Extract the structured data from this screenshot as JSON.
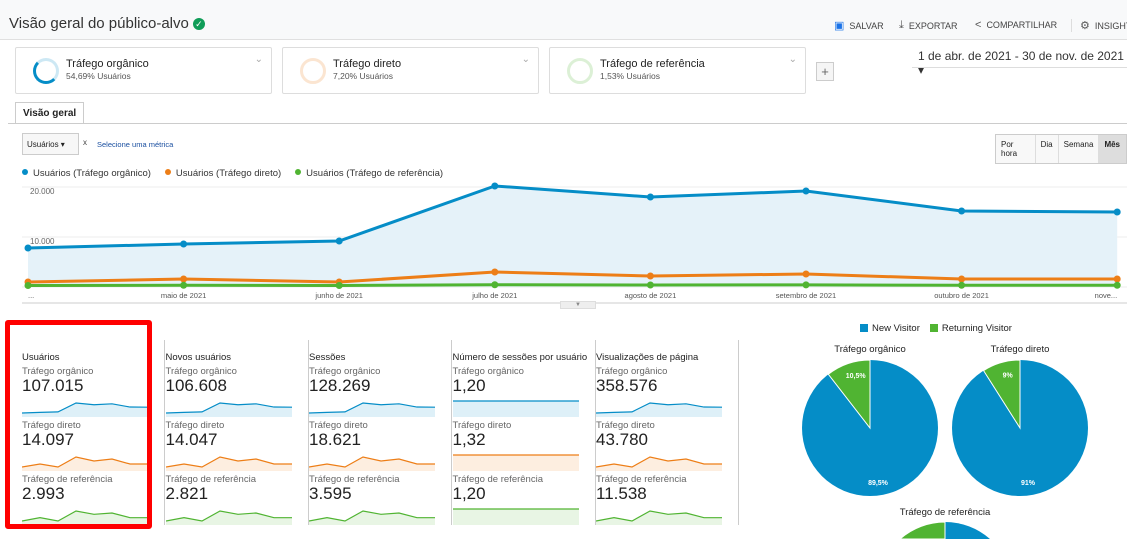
{
  "header": {
    "title": "Visão geral do público-alvo",
    "save": "SALVAR",
    "export": "EXPORTAR",
    "share": "COMPARTILHAR",
    "insights": "INSIGHTS"
  },
  "segments": [
    {
      "name": "Tráfego orgânico",
      "sub": "54,69% Usuários",
      "color": "#058dc7"
    },
    {
      "name": "Tráfego direto",
      "sub": "7,20% Usuários",
      "color": "#ed7e17"
    },
    {
      "name": "Tráfego de referência",
      "sub": "1,53% Usuários",
      "color": "#50b432"
    }
  ],
  "add_segment": "+",
  "date_range": "1 de abr. de 2021 - 30 de nov. de 2021",
  "tab": "Visão geral",
  "metric_select": "Usuários",
  "remove": "x",
  "select_metric": "Selecione uma métrica",
  "periods": [
    "Por hora",
    "Dia",
    "Semana",
    "Mês"
  ],
  "chart_data": {
    "type": "line",
    "categories": [
      "...",
      "maio de 2021",
      "junho de 2021",
      "julho de 2021",
      "agosto de 2021",
      "setembro de 2021",
      "outubro de 2021",
      "nove..."
    ],
    "yticks": [
      "20.000",
      "10.000"
    ],
    "ylim": [
      0,
      22000
    ],
    "series": [
      {
        "name": "Usuários (Tráfego orgânico)",
        "color": "#058dc7",
        "values": [
          7800,
          8600,
          9200,
          20200,
          18000,
          19200,
          15200,
          15000
        ]
      },
      {
        "name": "Usuários (Tráfego direto)",
        "color": "#ed7e17",
        "values": [
          1000,
          1600,
          1000,
          3000,
          2200,
          2600,
          1600,
          1600
        ]
      },
      {
        "name": "Usuários (Tráfego de referência)",
        "color": "#50b432",
        "values": [
          300,
          350,
          300,
          450,
          400,
          420,
          350,
          350
        ]
      }
    ]
  },
  "scorecards": [
    {
      "title": "Usuários",
      "rows": [
        {
          "label": "Tráfego orgânico",
          "value": "107.015"
        },
        {
          "label": "Tráfego direto",
          "value": "14.097"
        },
        {
          "label": "Tráfego de referência",
          "value": "2.993"
        }
      ]
    },
    {
      "title": "Novos usuários",
      "rows": [
        {
          "label": "Tráfego orgânico",
          "value": "106.608"
        },
        {
          "label": "Tráfego direto",
          "value": "14.047"
        },
        {
          "label": "Tráfego de referência",
          "value": "2.821"
        }
      ]
    },
    {
      "title": "Sessões",
      "rows": [
        {
          "label": "Tráfego orgânico",
          "value": "128.269"
        },
        {
          "label": "Tráfego direto",
          "value": "18.621"
        },
        {
          "label": "Tráfego de referência",
          "value": "3.595"
        }
      ]
    },
    {
      "title": "Número de sessões por usuário",
      "rows": [
        {
          "label": "Tráfego orgânico",
          "value": "1,20"
        },
        {
          "label": "Tráfego direto",
          "value": "1,32"
        },
        {
          "label": "Tráfego de referência",
          "value": "1,20"
        }
      ]
    },
    {
      "title": "Visualizações de página",
      "rows": [
        {
          "label": "Tráfego orgânico",
          "value": "358.576"
        },
        {
          "label": "Tráfego direto",
          "value": "43.780"
        },
        {
          "label": "Tráfego de referência",
          "value": "11.538"
        }
      ]
    }
  ],
  "pies": {
    "legend": [
      {
        "label": "New Visitor",
        "color": "#058dc7"
      },
      {
        "label": "Returning Visitor",
        "color": "#50b432"
      }
    ],
    "charts": [
      {
        "title": "Tráfego orgânico",
        "new": 89.5,
        "returning": 10.5,
        "new_label": "89,5%",
        "ret_label": "10,5%"
      },
      {
        "title": "Tráfego direto",
        "new": 91,
        "returning": 9,
        "new_label": "91%",
        "ret_label": "9%"
      },
      {
        "title": "Tráfego de referência",
        "new": 75,
        "returning": 25,
        "new_label": "",
        "ret_label": ""
      }
    ]
  }
}
